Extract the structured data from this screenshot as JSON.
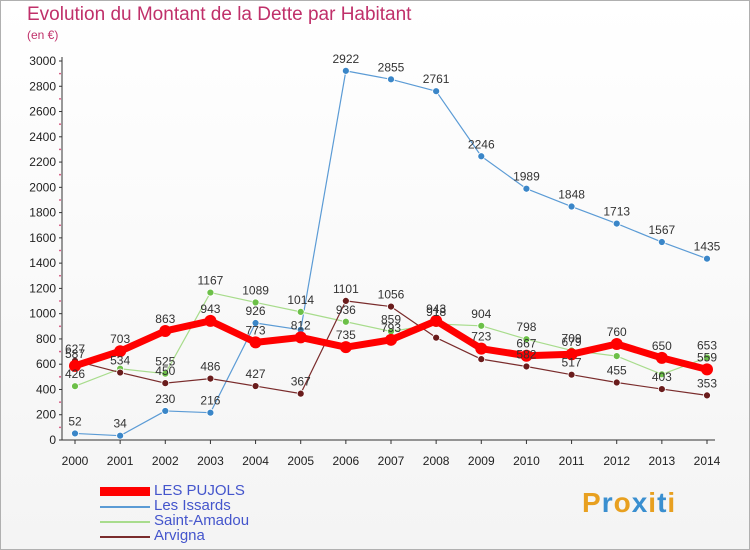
{
  "title": "Evolution du Montant de la Dette par Habitant",
  "subtitle": "(en €)",
  "logo": {
    "text": "Proxiti",
    "colors": [
      "#e8a020",
      "#3a8fd0",
      "#e8a020",
      "#3a8fd0",
      "#e8a020",
      "#3a8fd0",
      "#e8a020"
    ]
  },
  "chart_data": {
    "type": "line",
    "title": "Evolution du Montant de la Dette par Habitant",
    "subtitle": "(en €)",
    "xlabel": "",
    "ylabel": "",
    "x": [
      "2000",
      "2001",
      "2002",
      "2003",
      "2004",
      "2005",
      "2006",
      "2007",
      "2008",
      "2009",
      "2010",
      "2011",
      "2012",
      "2013",
      "2014"
    ],
    "ylim": [
      0,
      3000
    ],
    "yticks": [
      0,
      200,
      400,
      600,
      800,
      1000,
      1200,
      1400,
      1600,
      1800,
      2000,
      2200,
      2400,
      2600,
      2800,
      3000
    ],
    "grid": false,
    "legend": "bottom-left",
    "series": [
      {
        "name": "Les Issards",
        "color": "#5b9bd5",
        "marker": "#3a86c8",
        "width": 1.2,
        "values": [
          52,
          34,
          230,
          216,
          926,
          872,
          2922,
          2855,
          2761,
          2246,
          1989,
          1848,
          1713,
          1567,
          1435
        ],
        "labels": [
          "52",
          "34",
          "230",
          "216",
          "926",
          "",
          "2922",
          "2855",
          "2761",
          "2246",
          "1989",
          "1848",
          "1713",
          "1567",
          "1435"
        ]
      },
      {
        "name": "Saint-Amadou",
        "color": "#a8dc8c",
        "marker": "#6cc048",
        "width": 1.2,
        "values": [
          426,
          564,
          525,
          1167,
          1089,
          1014,
          936,
          859,
          918,
          904,
          798,
          709,
          664,
          520,
          653
        ],
        "labels": [
          "426",
          "",
          "525",
          "1167",
          "1089",
          "1014",
          "936",
          "859",
          "918",
          "904",
          "798",
          "709",
          "",
          "",
          "653"
        ]
      },
      {
        "name": "Arvigna",
        "color": "#7a2c2c",
        "marker": "#6a1c1c",
        "width": 1.2,
        "values": [
          627,
          534,
          450,
          486,
          427,
          367,
          1101,
          1056,
          810,
          640,
          582,
          517,
          455,
          403,
          353
        ],
        "labels": [
          "627",
          "534",
          "450",
          "486",
          "427",
          "367",
          "1101",
          "1056",
          "",
          "",
          "582",
          "517",
          "455",
          "403",
          "353"
        ]
      },
      {
        "name": "LES PUJOLS",
        "color": "#ff0000",
        "marker": "#ff0000",
        "width": 7,
        "values": [
          587,
          703,
          863,
          943,
          773,
          812,
          735,
          793,
          943,
          723,
          667,
          679,
          760,
          650,
          559
        ],
        "labels": [
          "587",
          "703",
          "863",
          "943",
          "773",
          "812",
          "735",
          "793",
          "943",
          "723",
          "667",
          "679",
          "760",
          "650",
          "559"
        ]
      }
    ],
    "legend_order": [
      "LES PUJOLS",
      "Les Issards",
      "Saint-Amadou",
      "Arvigna"
    ]
  }
}
